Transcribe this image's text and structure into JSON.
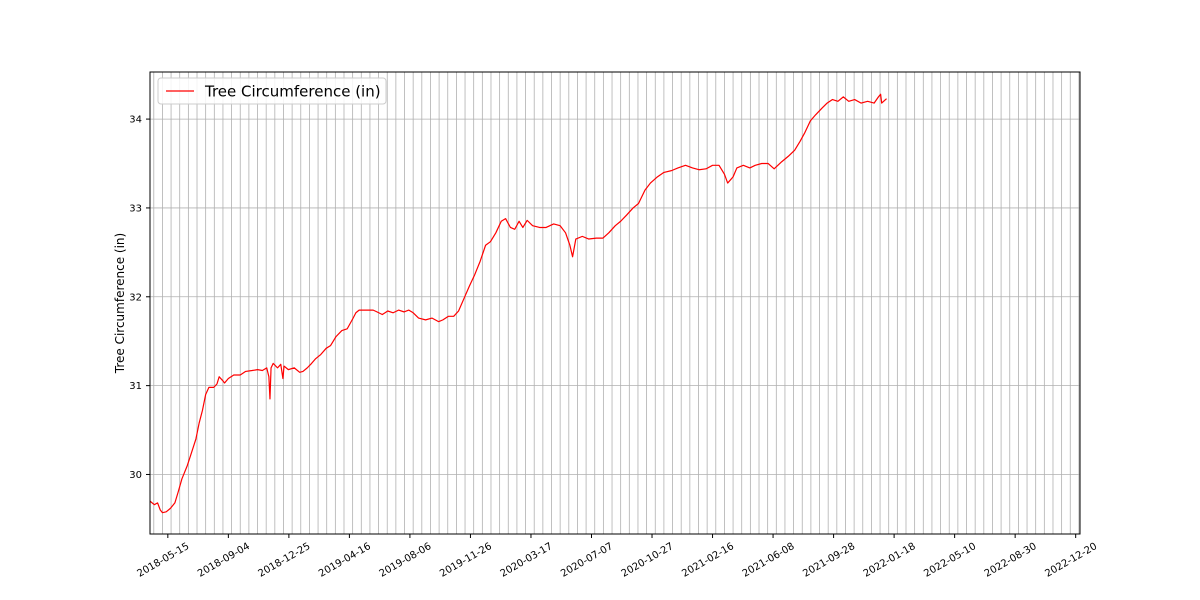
{
  "chart_data": {
    "type": "line",
    "title": "",
    "xlabel": "",
    "ylabel": "Tree Circumference (in)",
    "xlim": [
      "2018-04-12",
      "2022-12-28"
    ],
    "ylim": [
      29.33,
      34.53
    ],
    "y_ticks": [
      30,
      31,
      32,
      33,
      34
    ],
    "x_tick_labels": [
      "2018-05-15",
      "2018-09-04",
      "2018-12-25",
      "2019-04-16",
      "2019-08-06",
      "2019-11-26",
      "2020-03-17",
      "2020-07-07",
      "2020-10-27",
      "2021-02-16",
      "2021-06-08",
      "2021-09-28",
      "2022-01-18",
      "2022-05-10",
      "2022-08-30",
      "2022-12-20"
    ],
    "grid_interval_days": 16,
    "grid_start": "2018-04-19",
    "grid": true,
    "legend_position": "top-left",
    "series": [
      {
        "name": "Tree Circumference (in)",
        "color": "#ff0000",
        "points": [
          [
            "2018-04-12",
            29.7
          ],
          [
            "2018-04-20",
            29.66
          ],
          [
            "2018-04-26",
            29.68
          ],
          [
            "2018-05-01",
            29.6
          ],
          [
            "2018-05-05",
            29.57
          ],
          [
            "2018-05-12",
            29.58
          ],
          [
            "2018-05-20",
            29.62
          ],
          [
            "2018-05-28",
            29.68
          ],
          [
            "2018-06-03",
            29.8
          ],
          [
            "2018-06-10",
            29.95
          ],
          [
            "2018-06-20",
            30.1
          ],
          [
            "2018-06-28",
            30.25
          ],
          [
            "2018-07-06",
            30.4
          ],
          [
            "2018-07-12",
            30.58
          ],
          [
            "2018-07-18",
            30.72
          ],
          [
            "2018-07-24",
            30.9
          ],
          [
            "2018-07-30",
            30.98
          ],
          [
            "2018-08-08",
            30.98
          ],
          [
            "2018-08-14",
            31.02
          ],
          [
            "2018-08-18",
            31.1
          ],
          [
            "2018-08-24",
            31.06
          ],
          [
            "2018-08-28",
            31.03
          ],
          [
            "2018-09-04",
            31.08
          ],
          [
            "2018-09-14",
            31.12
          ],
          [
            "2018-09-26",
            31.12
          ],
          [
            "2018-10-06",
            31.16
          ],
          [
            "2018-10-18",
            31.17
          ],
          [
            "2018-10-28",
            31.18
          ],
          [
            "2018-11-06",
            31.17
          ],
          [
            "2018-11-14",
            31.2
          ],
          [
            "2018-11-18",
            31.1
          ],
          [
            "2018-11-20",
            30.85
          ],
          [
            "2018-11-22",
            31.2
          ],
          [
            "2018-11-26",
            31.25
          ],
          [
            "2018-12-04",
            31.2
          ],
          [
            "2018-12-10",
            31.24
          ],
          [
            "2018-12-14",
            31.08
          ],
          [
            "2018-12-16",
            31.22
          ],
          [
            "2018-12-24",
            31.18
          ],
          [
            "2019-01-04",
            31.2
          ],
          [
            "2019-01-14",
            31.15
          ],
          [
            "2019-01-20",
            31.16
          ],
          [
            "2019-01-28",
            31.2
          ],
          [
            "2019-02-05",
            31.25
          ],
          [
            "2019-02-12",
            31.3
          ],
          [
            "2019-02-22",
            31.35
          ],
          [
            "2019-03-04",
            31.42
          ],
          [
            "2019-03-12",
            31.45
          ],
          [
            "2019-03-22",
            31.55
          ],
          [
            "2019-04-02",
            31.62
          ],
          [
            "2019-04-12",
            31.64
          ],
          [
            "2019-04-22",
            31.75
          ],
          [
            "2019-04-28",
            31.82
          ],
          [
            "2019-05-04",
            31.85
          ],
          [
            "2019-05-20",
            31.85
          ],
          [
            "2019-05-30",
            31.85
          ],
          [
            "2019-06-06",
            31.83
          ],
          [
            "2019-06-16",
            31.8
          ],
          [
            "2019-06-26",
            31.84
          ],
          [
            "2019-07-06",
            31.82
          ],
          [
            "2019-07-16",
            31.85
          ],
          [
            "2019-07-26",
            31.83
          ],
          [
            "2019-08-04",
            31.85
          ],
          [
            "2019-08-12",
            31.82
          ],
          [
            "2019-08-22",
            31.76
          ],
          [
            "2019-09-04",
            31.74
          ],
          [
            "2019-09-16",
            31.76
          ],
          [
            "2019-09-28",
            31.72
          ],
          [
            "2019-10-06",
            31.74
          ],
          [
            "2019-10-16",
            31.78
          ],
          [
            "2019-10-26",
            31.78
          ],
          [
            "2019-11-04",
            31.84
          ],
          [
            "2019-11-14",
            31.98
          ],
          [
            "2019-11-24",
            32.12
          ],
          [
            "2019-12-04",
            32.25
          ],
          [
            "2019-12-14",
            32.4
          ],
          [
            "2019-12-24",
            32.58
          ],
          [
            "2020-01-02",
            32.62
          ],
          [
            "2020-01-12",
            32.72
          ],
          [
            "2020-01-22",
            32.85
          ],
          [
            "2020-01-30",
            32.88
          ],
          [
            "2020-02-08",
            32.78
          ],
          [
            "2020-02-16",
            32.76
          ],
          [
            "2020-02-24",
            32.85
          ],
          [
            "2020-03-02",
            32.78
          ],
          [
            "2020-03-10",
            32.86
          ],
          [
            "2020-03-20",
            32.8
          ],
          [
            "2020-04-02",
            32.78
          ],
          [
            "2020-04-14",
            32.78
          ],
          [
            "2020-04-28",
            32.82
          ],
          [
            "2020-05-10",
            32.8
          ],
          [
            "2020-05-20",
            32.72
          ],
          [
            "2020-05-28",
            32.58
          ],
          [
            "2020-06-02",
            32.45
          ],
          [
            "2020-06-08",
            32.65
          ],
          [
            "2020-06-20",
            32.68
          ],
          [
            "2020-07-02",
            32.65
          ],
          [
            "2020-07-16",
            32.66
          ],
          [
            "2020-07-28",
            32.66
          ],
          [
            "2020-08-08",
            32.72
          ],
          [
            "2020-08-20",
            32.8
          ],
          [
            "2020-08-30",
            32.85
          ],
          [
            "2020-09-10",
            32.92
          ],
          [
            "2020-09-22",
            33.0
          ],
          [
            "2020-10-02",
            33.05
          ],
          [
            "2020-10-14",
            33.2
          ],
          [
            "2020-10-24",
            33.28
          ],
          [
            "2020-11-06",
            33.35
          ],
          [
            "2020-11-18",
            33.4
          ],
          [
            "2020-12-02",
            33.42
          ],
          [
            "2020-12-14",
            33.45
          ],
          [
            "2020-12-28",
            33.48
          ],
          [
            "2021-01-10",
            33.45
          ],
          [
            "2021-01-22",
            33.43
          ],
          [
            "2021-02-04",
            33.44
          ],
          [
            "2021-02-16",
            33.48
          ],
          [
            "2021-02-28",
            33.48
          ],
          [
            "2021-03-10",
            33.38
          ],
          [
            "2021-03-16",
            33.28
          ],
          [
            "2021-03-26",
            33.35
          ],
          [
            "2021-04-02",
            33.45
          ],
          [
            "2021-04-14",
            33.48
          ],
          [
            "2021-04-26",
            33.45
          ],
          [
            "2021-05-06",
            33.48
          ],
          [
            "2021-05-18",
            33.5
          ],
          [
            "2021-05-30",
            33.5
          ],
          [
            "2021-06-10",
            33.44
          ],
          [
            "2021-06-24",
            33.52
          ],
          [
            "2021-07-06",
            33.58
          ],
          [
            "2021-07-18",
            33.65
          ],
          [
            "2021-07-28",
            33.75
          ],
          [
            "2021-08-06",
            33.85
          ],
          [
            "2021-08-16",
            33.98
          ],
          [
            "2021-08-26",
            34.05
          ],
          [
            "2021-09-06",
            34.12
          ],
          [
            "2021-09-16",
            34.18
          ],
          [
            "2021-09-26",
            34.22
          ],
          [
            "2021-10-06",
            34.2
          ],
          [
            "2021-10-16",
            34.25
          ],
          [
            "2021-10-26",
            34.2
          ],
          [
            "2021-11-06",
            34.22
          ],
          [
            "2021-11-18",
            34.18
          ],
          [
            "2021-11-30",
            34.2
          ],
          [
            "2021-12-12",
            34.18
          ],
          [
            "2021-12-20",
            34.25
          ],
          [
            "2021-12-24",
            34.28
          ],
          [
            "2021-12-26",
            34.18
          ],
          [
            "2022-01-04",
            34.23
          ]
        ]
      }
    ]
  }
}
